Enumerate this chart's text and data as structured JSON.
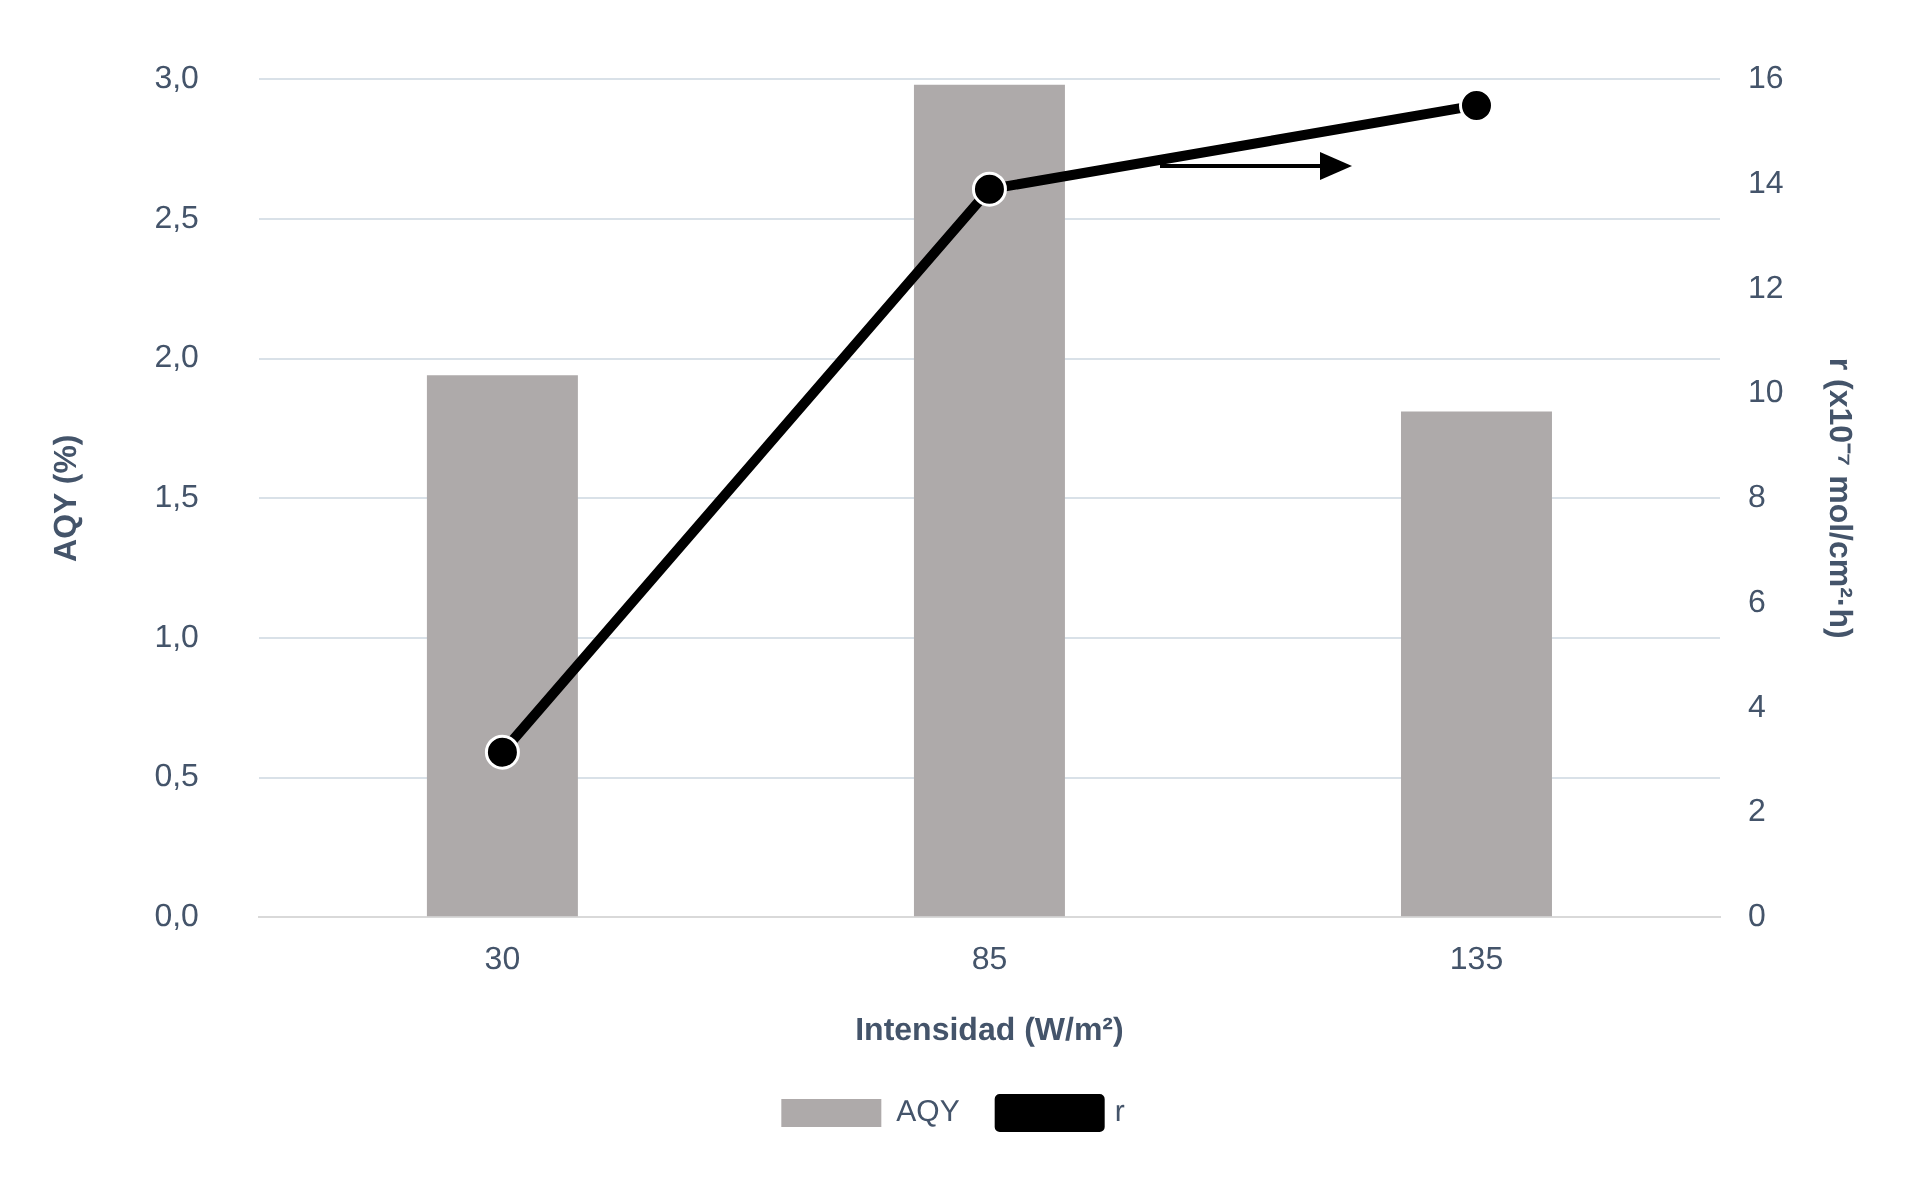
{
  "chart_data": {
    "type": "bar",
    "xlabel": "Intensidad (W/m²)",
    "ylabel": "AQY (%)",
    "y2label": "r (x10⁻⁷ mol/cm²·h)",
    "categories": [
      "30",
      "85",
      "135"
    ],
    "series": [
      {
        "name": "AQY",
        "color": "#aeaaaa",
        "values": [
          1.94,
          2.98,
          1.81
        ]
      },
      {
        "name": "r",
        "type": "line",
        "axis": "y2",
        "color": "#000000",
        "values": [
          3.15,
          13.9,
          15.5
        ]
      }
    ],
    "ylim": [
      0,
      3
    ],
    "yticks": [
      {
        "value": 0,
        "label": "0,0"
      },
      {
        "value": 0.5,
        "label": "0,5"
      },
      {
        "value": 1,
        "label": "1,0"
      },
      {
        "value": 1.5,
        "label": "1,5"
      },
      {
        "value": 2,
        "label": "2,0"
      },
      {
        "value": 2.5,
        "label": "2,5"
      },
      {
        "value": 3,
        "label": "3,0"
      }
    ],
    "y2lim": [
      0,
      16
    ],
    "y2ticks": [
      0,
      2,
      4,
      6,
      8,
      10,
      12,
      14,
      16
    ],
    "grid": "y",
    "legend": "bottom",
    "marker": "circle",
    "line_style": "solid"
  }
}
